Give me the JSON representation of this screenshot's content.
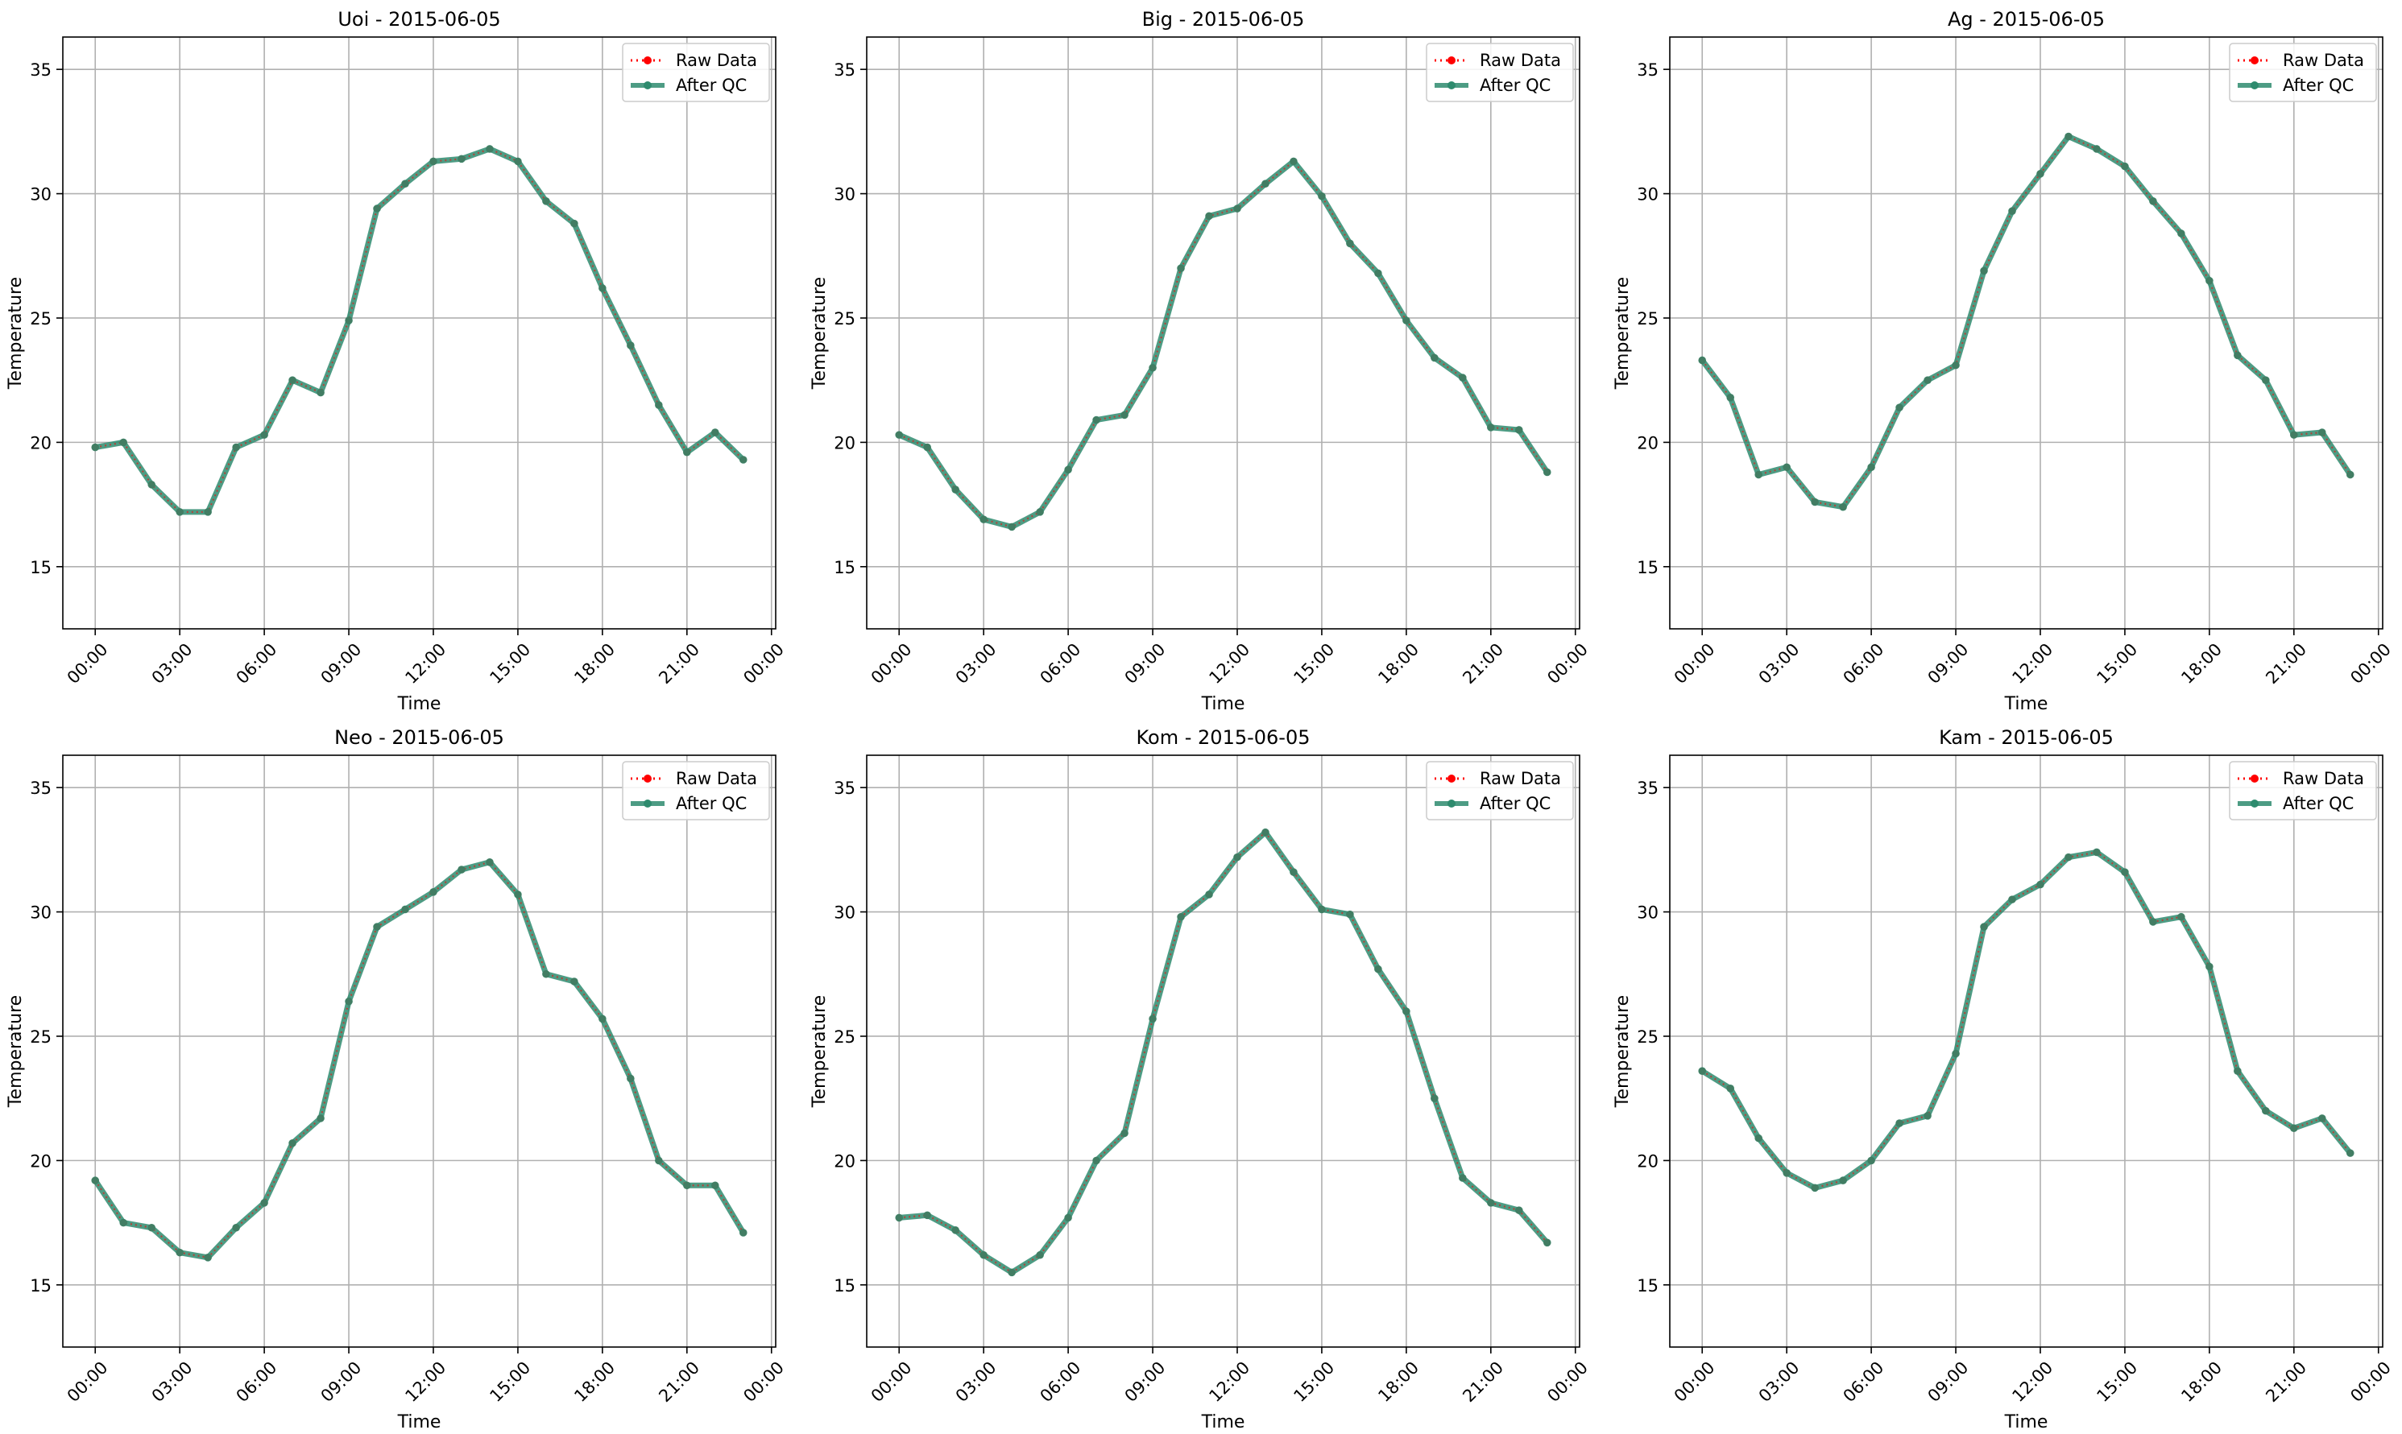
{
  "legend": {
    "raw_label": "Raw Data",
    "qc_label": "After QC",
    "placement": "upper right"
  },
  "colors": {
    "raw": "#ff0000",
    "qc": "#2e8b6e",
    "grid": "#b0b0b0",
    "axes": "#000000"
  },
  "chart_data": [
    {
      "type": "line",
      "title": "Uoi - 2015-06-05",
      "xlabel": "Time",
      "ylabel": "Temperature",
      "ylim": [
        12.5,
        36.3
      ],
      "yticks": [
        15,
        20,
        25,
        30,
        35
      ],
      "xlim": [
        -1.15,
        24.15
      ],
      "xtick_labels": [
        "00:00",
        "03:00",
        "06:00",
        "09:00",
        "12:00",
        "15:00",
        "18:00",
        "21:00",
        "00:00"
      ],
      "grid": true,
      "x": [
        "00:00",
        "01:00",
        "02:00",
        "03:00",
        "04:00",
        "05:00",
        "06:00",
        "07:00",
        "08:00",
        "09:00",
        "10:00",
        "11:00",
        "12:00",
        "13:00",
        "14:00",
        "15:00",
        "16:00",
        "17:00",
        "18:00",
        "19:00",
        "20:00",
        "21:00",
        "22:00",
        "23:00"
      ],
      "series": [
        {
          "name": "Raw Data",
          "values": [
            19.8,
            20.0,
            18.3,
            17.2,
            17.2,
            19.8,
            20.3,
            22.5,
            22.0,
            24.9,
            29.4,
            30.4,
            31.3,
            31.4,
            31.8,
            31.3,
            29.7,
            28.8,
            26.2,
            23.9,
            21.5,
            19.6,
            20.4,
            19.3
          ]
        },
        {
          "name": "After QC",
          "values": [
            19.8,
            20.0,
            18.3,
            17.2,
            17.2,
            19.8,
            20.3,
            22.5,
            22.0,
            24.9,
            29.4,
            30.4,
            31.3,
            31.4,
            31.8,
            31.3,
            29.7,
            28.8,
            26.2,
            23.9,
            21.5,
            19.6,
            20.4,
            19.3
          ]
        }
      ]
    },
    {
      "type": "line",
      "title": "Big - 2015-06-05",
      "xlabel": "Time",
      "ylabel": "Temperature",
      "ylim": [
        12.5,
        36.3
      ],
      "yticks": [
        15,
        20,
        25,
        30,
        35
      ],
      "xlim": [
        -1.15,
        24.15
      ],
      "xtick_labels": [
        "00:00",
        "03:00",
        "06:00",
        "09:00",
        "12:00",
        "15:00",
        "18:00",
        "21:00",
        "00:00"
      ],
      "grid": true,
      "x": [
        "00:00",
        "01:00",
        "02:00",
        "03:00",
        "04:00",
        "05:00",
        "06:00",
        "07:00",
        "08:00",
        "09:00",
        "10:00",
        "11:00",
        "12:00",
        "13:00",
        "14:00",
        "15:00",
        "16:00",
        "17:00",
        "18:00",
        "19:00",
        "20:00",
        "21:00",
        "22:00",
        "23:00"
      ],
      "series": [
        {
          "name": "Raw Data",
          "values": [
            20.3,
            19.8,
            18.1,
            16.9,
            16.6,
            17.2,
            18.9,
            20.9,
            21.1,
            23.0,
            27.0,
            29.1,
            29.4,
            30.4,
            31.3,
            29.9,
            28.0,
            26.8,
            24.9,
            23.4,
            22.6,
            20.6,
            20.5,
            18.8
          ]
        },
        {
          "name": "After QC",
          "values": [
            20.3,
            19.8,
            18.1,
            16.9,
            16.6,
            17.2,
            18.9,
            20.9,
            21.1,
            23.0,
            27.0,
            29.1,
            29.4,
            30.4,
            31.3,
            29.9,
            28.0,
            26.8,
            24.9,
            23.4,
            22.6,
            20.6,
            20.5,
            18.8
          ]
        }
      ]
    },
    {
      "type": "line",
      "title": "Ag - 2015-06-05",
      "xlabel": "Time",
      "ylabel": "Temperature",
      "ylim": [
        12.5,
        36.3
      ],
      "yticks": [
        15,
        20,
        25,
        30,
        35
      ],
      "xlim": [
        -1.15,
        24.15
      ],
      "xtick_labels": [
        "00:00",
        "03:00",
        "06:00",
        "09:00",
        "12:00",
        "15:00",
        "18:00",
        "21:00",
        "00:00"
      ],
      "grid": true,
      "x": [
        "00:00",
        "01:00",
        "02:00",
        "03:00",
        "04:00",
        "05:00",
        "06:00",
        "07:00",
        "08:00",
        "09:00",
        "10:00",
        "11:00",
        "12:00",
        "13:00",
        "14:00",
        "15:00",
        "16:00",
        "17:00",
        "18:00",
        "19:00",
        "20:00",
        "21:00",
        "22:00",
        "23:00"
      ],
      "series": [
        {
          "name": "Raw Data",
          "values": [
            23.3,
            21.8,
            18.7,
            19.0,
            17.6,
            17.4,
            19.0,
            21.4,
            22.5,
            23.1,
            26.9,
            29.3,
            30.8,
            32.3,
            31.8,
            31.1,
            29.7,
            28.4,
            26.5,
            23.5,
            22.5,
            20.3,
            20.4,
            18.7
          ]
        },
        {
          "name": "After QC",
          "values": [
            23.3,
            21.8,
            18.7,
            19.0,
            17.6,
            17.4,
            19.0,
            21.4,
            22.5,
            23.1,
            26.9,
            29.3,
            30.8,
            32.3,
            31.8,
            31.1,
            29.7,
            28.4,
            26.5,
            23.5,
            22.5,
            20.3,
            20.4,
            18.7
          ]
        }
      ]
    },
    {
      "type": "line",
      "title": "Neo - 2015-06-05",
      "xlabel": "Time",
      "ylabel": "Temperature",
      "ylim": [
        12.5,
        36.3
      ],
      "yticks": [
        15,
        20,
        25,
        30,
        35
      ],
      "xlim": [
        -1.15,
        24.15
      ],
      "xtick_labels": [
        "00:00",
        "03:00",
        "06:00",
        "09:00",
        "12:00",
        "15:00",
        "18:00",
        "21:00",
        "00:00"
      ],
      "grid": true,
      "x": [
        "00:00",
        "01:00",
        "02:00",
        "03:00",
        "04:00",
        "05:00",
        "06:00",
        "07:00",
        "08:00",
        "09:00",
        "10:00",
        "11:00",
        "12:00",
        "13:00",
        "14:00",
        "15:00",
        "16:00",
        "17:00",
        "18:00",
        "19:00",
        "20:00",
        "21:00",
        "22:00",
        "23:00"
      ],
      "series": [
        {
          "name": "Raw Data",
          "values": [
            19.2,
            17.5,
            17.3,
            16.3,
            16.1,
            17.3,
            18.3,
            20.7,
            21.7,
            26.4,
            29.4,
            30.1,
            30.8,
            31.7,
            32.0,
            30.7,
            27.5,
            27.2,
            25.7,
            23.3,
            20.0,
            19.0,
            19.0,
            17.1
          ]
        },
        {
          "name": "After QC",
          "values": [
            19.2,
            17.5,
            17.3,
            16.3,
            16.1,
            17.3,
            18.3,
            20.7,
            21.7,
            26.4,
            29.4,
            30.1,
            30.8,
            31.7,
            32.0,
            30.7,
            27.5,
            27.2,
            25.7,
            23.3,
            20.0,
            19.0,
            19.0,
            17.1
          ]
        }
      ]
    },
    {
      "type": "line",
      "title": "Kom - 2015-06-05",
      "xlabel": "Time",
      "ylabel": "Temperature",
      "ylim": [
        12.5,
        36.3
      ],
      "yticks": [
        15,
        20,
        25,
        30,
        35
      ],
      "xlim": [
        -1.15,
        24.15
      ],
      "xtick_labels": [
        "00:00",
        "03:00",
        "06:00",
        "09:00",
        "12:00",
        "15:00",
        "18:00",
        "21:00",
        "00:00"
      ],
      "grid": true,
      "x": [
        "00:00",
        "01:00",
        "02:00",
        "03:00",
        "04:00",
        "05:00",
        "06:00",
        "07:00",
        "08:00",
        "09:00",
        "10:00",
        "11:00",
        "12:00",
        "13:00",
        "14:00",
        "15:00",
        "16:00",
        "17:00",
        "18:00",
        "19:00",
        "20:00",
        "21:00",
        "22:00",
        "23:00"
      ],
      "series": [
        {
          "name": "Raw Data",
          "values": [
            17.7,
            17.8,
            17.2,
            16.2,
            15.5,
            16.2,
            17.7,
            20.0,
            21.1,
            25.7,
            29.8,
            30.7,
            32.2,
            33.2,
            31.6,
            30.1,
            29.9,
            27.7,
            26.0,
            22.5,
            19.3,
            18.3,
            18.0,
            16.7
          ]
        },
        {
          "name": "After QC",
          "values": [
            17.7,
            17.8,
            17.2,
            16.2,
            15.5,
            16.2,
            17.7,
            20.0,
            21.1,
            25.7,
            29.8,
            30.7,
            32.2,
            33.2,
            31.6,
            30.1,
            29.9,
            27.7,
            26.0,
            22.5,
            19.3,
            18.3,
            18.0,
            16.7
          ]
        }
      ]
    },
    {
      "type": "line",
      "title": "Kam - 2015-06-05",
      "xlabel": "Time",
      "ylabel": "Temperature",
      "ylim": [
        12.5,
        36.3
      ],
      "yticks": [
        15,
        20,
        25,
        30,
        35
      ],
      "xlim": [
        -1.15,
        24.15
      ],
      "xtick_labels": [
        "00:00",
        "03:00",
        "06:00",
        "09:00",
        "12:00",
        "15:00",
        "18:00",
        "21:00",
        "00:00"
      ],
      "grid": true,
      "x": [
        "00:00",
        "01:00",
        "02:00",
        "03:00",
        "04:00",
        "05:00",
        "06:00",
        "07:00",
        "08:00",
        "09:00",
        "10:00",
        "11:00",
        "12:00",
        "13:00",
        "14:00",
        "15:00",
        "16:00",
        "17:00",
        "18:00",
        "19:00",
        "20:00",
        "21:00",
        "22:00",
        "23:00"
      ],
      "series": [
        {
          "name": "Raw Data",
          "values": [
            23.6,
            22.9,
            20.9,
            19.5,
            18.9,
            19.2,
            20.0,
            21.5,
            21.8,
            24.3,
            29.4,
            30.5,
            31.1,
            32.2,
            32.4,
            31.6,
            29.6,
            29.8,
            27.8,
            23.6,
            22.0,
            21.3,
            21.7,
            20.3
          ]
        },
        {
          "name": "After QC",
          "values": [
            23.6,
            22.9,
            20.9,
            19.5,
            18.9,
            19.2,
            20.0,
            21.5,
            21.8,
            24.3,
            29.4,
            30.5,
            31.1,
            32.2,
            32.4,
            31.6,
            29.6,
            29.8,
            27.8,
            23.6,
            22.0,
            21.3,
            21.7,
            20.3
          ]
        }
      ]
    }
  ]
}
